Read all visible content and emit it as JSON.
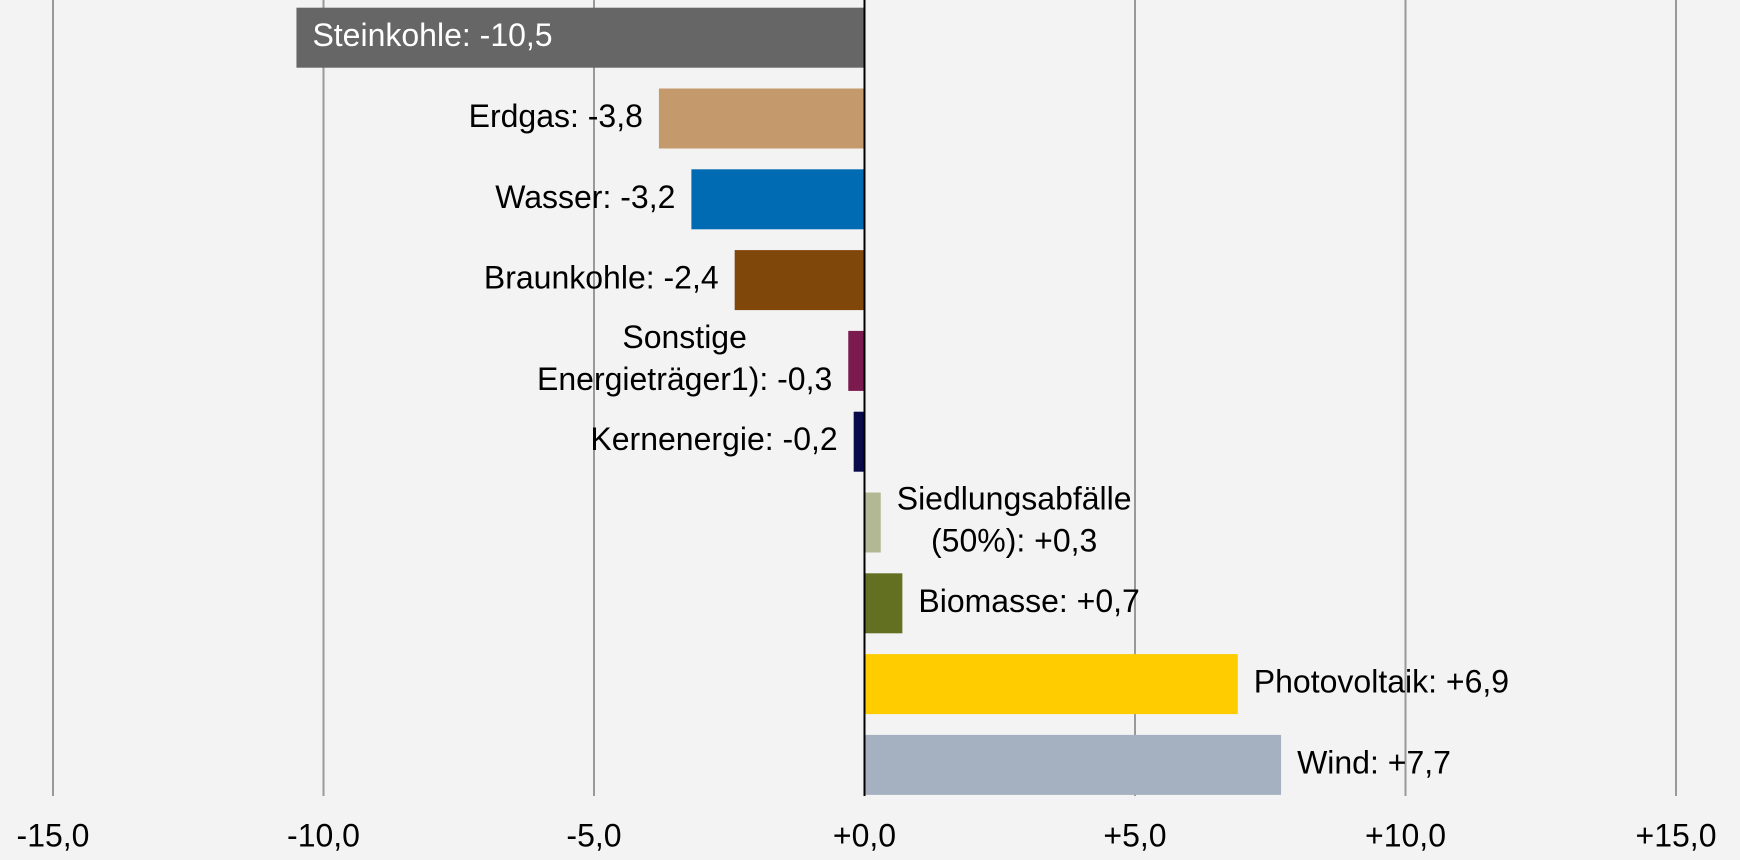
{
  "chart_data": {
    "type": "bar",
    "orientation": "horizontal",
    "values": [
      -10.5,
      -3.8,
      -3.2,
      -2.4,
      -0.3,
      -0.2,
      0.3,
      0.7,
      6.9,
      7.7
    ],
    "value_labels": [
      "Steinkohle: -10,5",
      "Erdgas: -3,8",
      "Wasser: -3,2",
      "Braunkohle: -2,4",
      "Sonstige Energieträger1): -0,3",
      "Kernenergie: -0,2",
      "Siedlungsabfälle (50%): +0,3",
      "Biomasse: +0,7",
      "Photovoltaik: +6,9",
      "Wind: +7,7"
    ],
    "colors": [
      "#666666",
      "#c4996b",
      "#006ab3",
      "#80470b",
      "#7a1a4e",
      "#0a0a4a",
      "#b2b894",
      "#637022",
      "#ffcc00",
      "#a5b1c0"
    ],
    "xlim": [
      -15,
      15
    ],
    "xticks": [
      {
        "value": -15,
        "label": "-15,0"
      },
      {
        "value": -10,
        "label": "-10,0"
      },
      {
        "value": -5,
        "label": "-5,0"
      },
      {
        "value": 0,
        "label": "+0,0"
      },
      {
        "value": 5,
        "label": "+5,0"
      },
      {
        "value": 10,
        "label": "+10,0"
      },
      {
        "value": 15,
        "label": "+15,0"
      }
    ],
    "grid": true
  }
}
